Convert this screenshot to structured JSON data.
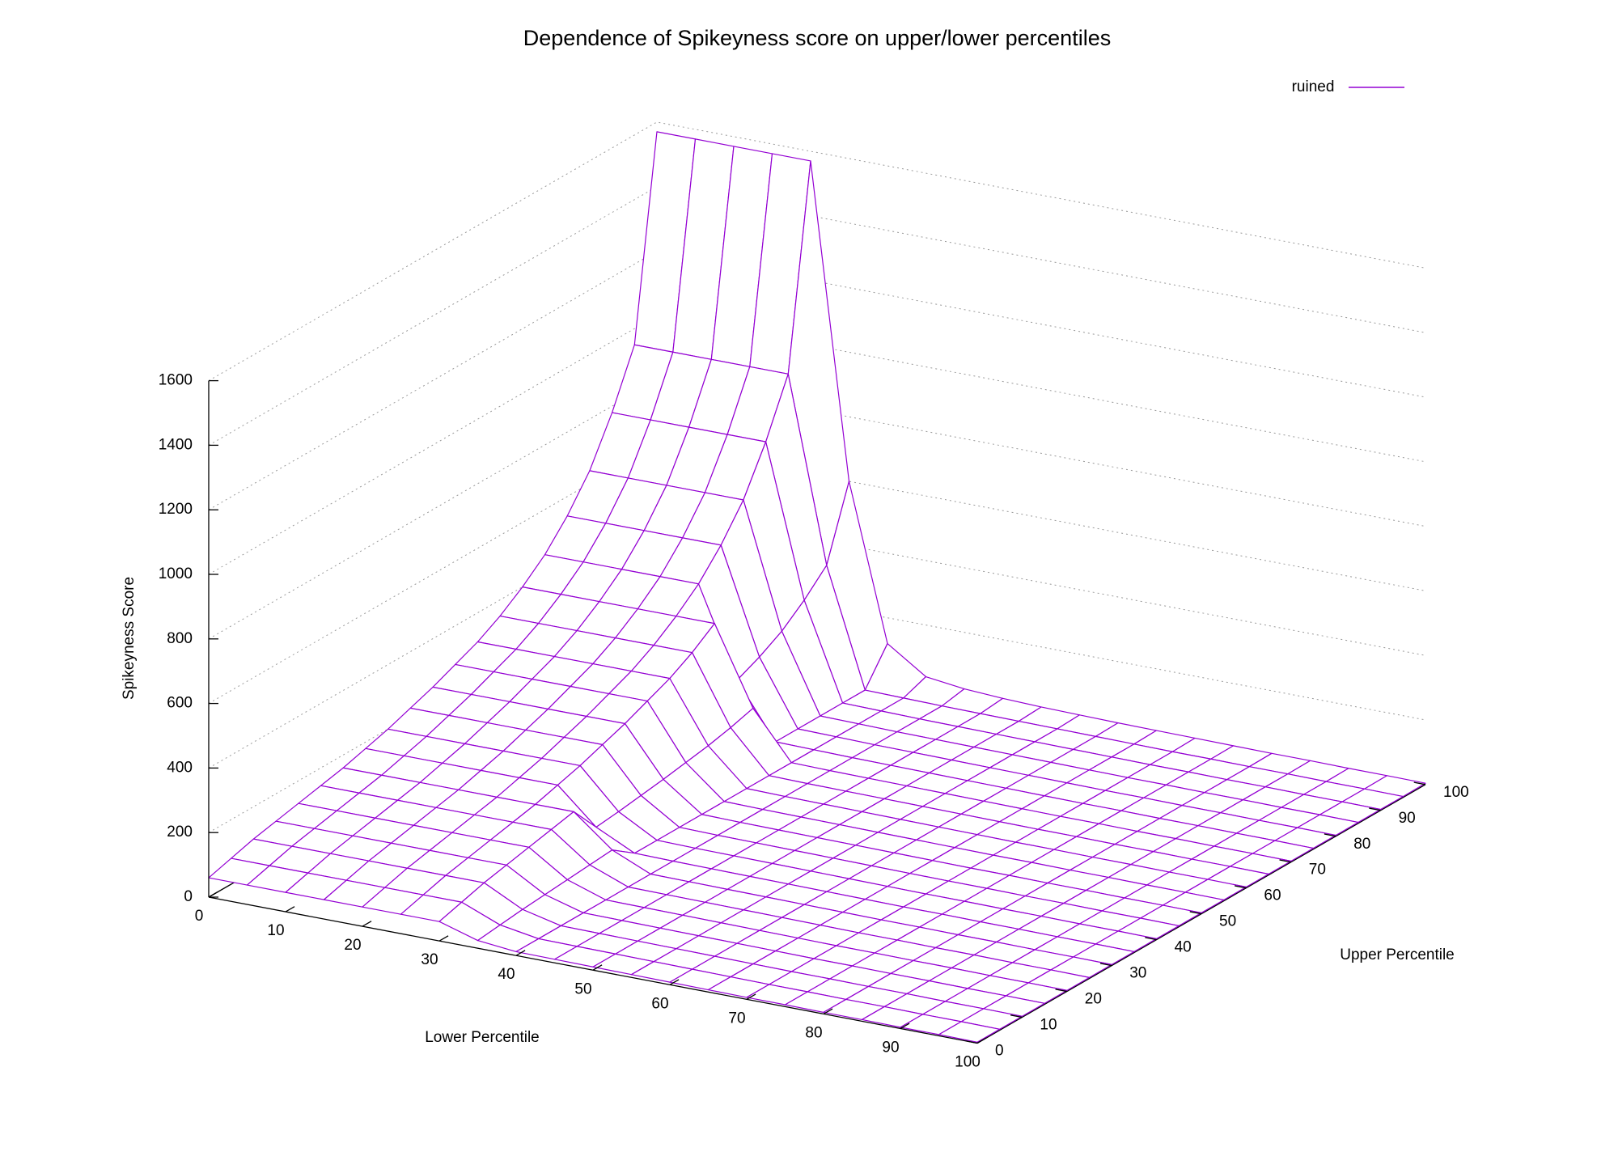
{
  "chart_data": {
    "type": "surface",
    "title": "Dependence of Spikeyness score on upper/lower percentiles",
    "xlabel": "Lower Percentile",
    "ylabel": "Upper Percentile",
    "zlabel": "Spikeyness Score",
    "series": [
      {
        "name": "ruined",
        "color": "#9400d3"
      }
    ],
    "x": [
      0,
      5,
      10,
      15,
      20,
      25,
      30,
      35,
      40,
      45,
      50,
      55,
      60,
      65,
      70,
      75,
      80,
      85,
      90,
      95,
      100
    ],
    "y": [
      0,
      5,
      10,
      15,
      20,
      25,
      30,
      35,
      40,
      45,
      50,
      55,
      60,
      65,
      70,
      75,
      80,
      85,
      90,
      95,
      100
    ],
    "z": [
      [
        60,
        60,
        60,
        60,
        60,
        60,
        60,
        24,
        12,
        11,
        10,
        9,
        8,
        7,
        6,
        6,
        5,
        5,
        4,
        4,
        3
      ],
      [
        80,
        80,
        80,
        80,
        80,
        80,
        80,
        32,
        12,
        11,
        10,
        9,
        8,
        7,
        6,
        6,
        5,
        5,
        4,
        4,
        3
      ],
      [
        100,
        100,
        100,
        100,
        100,
        100,
        100,
        40,
        12,
        11,
        10,
        9,
        8,
        7,
        6,
        6,
        5,
        5,
        4,
        4,
        3
      ],
      [
        115,
        115,
        115,
        115,
        115,
        115,
        115,
        46,
        12,
        11,
        10,
        9,
        8,
        7,
        6,
        6,
        5,
        5,
        4,
        4,
        3
      ],
      [
        130,
        130,
        130,
        130,
        130,
        130,
        130,
        52,
        12,
        11,
        10,
        9,
        8,
        7,
        6,
        6,
        5,
        5,
        4,
        4,
        3
      ],
      [
        145,
        145,
        145,
        145,
        145,
        145,
        145,
        58,
        12,
        11,
        10,
        9,
        8,
        7,
        6,
        6,
        5,
        5,
        4,
        4,
        3
      ],
      [
        160,
        160,
        160,
        160,
        160,
        160,
        160,
        64,
        12,
        11,
        10,
        9,
        8,
        7,
        6,
        6,
        5,
        5,
        4,
        4,
        3
      ],
      [
        180,
        180,
        180,
        180,
        180,
        180,
        72,
        14,
        12,
        11,
        10,
        9,
        8,
        7,
        6,
        6,
        5,
        5,
        4,
        4,
        3
      ],
      [
        200,
        200,
        200,
        200,
        200,
        200,
        80,
        14,
        12,
        11,
        10,
        9,
        8,
        7,
        6,
        6,
        5,
        5,
        4,
        4,
        3
      ],
      [
        225,
        225,
        225,
        225,
        225,
        225,
        90,
        14,
        12,
        11,
        10,
        9,
        8,
        7,
        6,
        6,
        5,
        5,
        4,
        4,
        3
      ],
      [
        250,
        250,
        250,
        250,
        250,
        250,
        100,
        14,
        12,
        11,
        10,
        9,
        8,
        7,
        6,
        6,
        5,
        5,
        4,
        4,
        3
      ],
      [
        280,
        280,
        280,
        280,
        280,
        280,
        112,
        14,
        12,
        11,
        10,
        9,
        8,
        7,
        6,
        6,
        5,
        5,
        4,
        4,
        3
      ],
      [
        310,
        310,
        310,
        310,
        310,
        310,
        124,
        14,
        12,
        11,
        10,
        9,
        8,
        7,
        6,
        6,
        5,
        5,
        4,
        4,
        3
      ],
      [
        350,
        350,
        350,
        350,
        350,
        350,
        140,
        14,
        12,
        11,
        10,
        9,
        8,
        7,
        6,
        6,
        5,
        5,
        4,
        4,
        3
      ],
      [
        400,
        400,
        400,
        400,
        400,
        400,
        160,
        14,
        12,
        11,
        10,
        9,
        8,
        7,
        6,
        6,
        5,
        5,
        4,
        4,
        3
      ],
      [
        460,
        460,
        460,
        460,
        460,
        184,
        16,
        14,
        12,
        11,
        10,
        9,
        8,
        7,
        6,
        6,
        5,
        5,
        4,
        4,
        3
      ],
      [
        540,
        540,
        540,
        540,
        540,
        216,
        16,
        14,
        12,
        11,
        10,
        9,
        8,
        7,
        6,
        6,
        5,
        5,
        4,
        4,
        3
      ],
      [
        640,
        640,
        640,
        640,
        640,
        256,
        16,
        14,
        12,
        11,
        10,
        9,
        8,
        7,
        6,
        6,
        5,
        5,
        4,
        4,
        3
      ],
      [
        780,
        780,
        780,
        780,
        780,
        312,
        16,
        14,
        12,
        11,
        10,
        9,
        8,
        7,
        6,
        6,
        5,
        5,
        4,
        4,
        3
      ],
      [
        950,
        950,
        950,
        950,
        950,
        380,
        16,
        14,
        12,
        11,
        10,
        9,
        8,
        7,
        6,
        6,
        5,
        5,
        4,
        4,
        3
      ],
      [
        1570,
        1570,
        1570,
        1570,
        1570,
        600,
        120,
        40,
        25,
        18,
        14,
        12,
        10,
        9,
        8,
        7,
        6,
        6,
        5,
        5,
        4
      ]
    ],
    "xlim": [
      0,
      100
    ],
    "ylim": [
      0,
      100
    ],
    "zlim": [
      0,
      1600
    ],
    "xticks": [
      0,
      10,
      20,
      30,
      40,
      50,
      60,
      70,
      80,
      90,
      100
    ],
    "yticks": [
      0,
      10,
      20,
      30,
      40,
      50,
      60,
      70,
      80,
      90,
      100
    ],
    "zticks": [
      0,
      200,
      400,
      600,
      800,
      1000,
      1200,
      1400,
      1600
    ],
    "grid": true
  }
}
